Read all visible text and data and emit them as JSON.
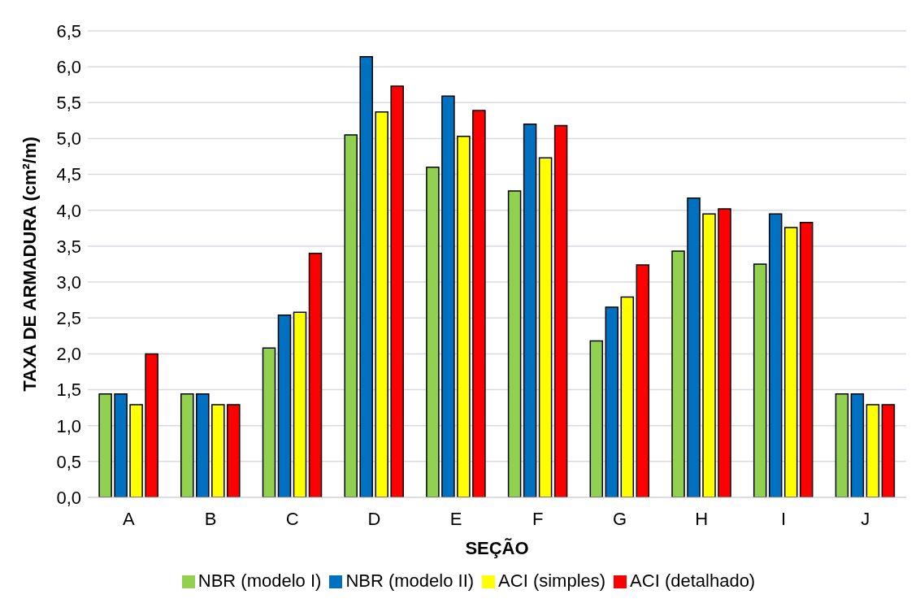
{
  "chart_data": {
    "type": "bar",
    "xlabel": "SEÇÃO",
    "ylabel": "TAXA DE ARMADURA (cm²/m)",
    "categories": [
      "A",
      "B",
      "C",
      "D",
      "E",
      "F",
      "G",
      "H",
      "I",
      "J"
    ],
    "series": [
      {
        "name": "NBR (modelo I)",
        "color": "#92d050",
        "values": [
          1.44,
          1.44,
          2.08,
          5.05,
          4.6,
          4.27,
          2.18,
          3.43,
          3.25,
          1.44
        ]
      },
      {
        "name": "NBR (modelo II)",
        "color": "#0070c0",
        "values": [
          1.44,
          1.44,
          2.54,
          6.14,
          5.59,
          5.2,
          2.65,
          4.17,
          3.95,
          1.44
        ]
      },
      {
        "name": "ACI (simples)",
        "color": "#ffff00",
        "values": [
          1.29,
          1.29,
          2.58,
          5.37,
          5.03,
          4.73,
          2.79,
          3.95,
          3.76,
          1.29
        ]
      },
      {
        "name": "ACI (detalhado)",
        "color": "#ff0000",
        "values": [
          2.0,
          1.29,
          3.4,
          5.73,
          5.39,
          5.18,
          3.24,
          4.02,
          3.83,
          1.29
        ]
      }
    ],
    "ylim": [
      0,
      6.5
    ],
    "yticks": [
      {
        "value": 0,
        "label": "0,0"
      },
      {
        "value": 0.5,
        "label": "0,5"
      },
      {
        "value": 1,
        "label": "1,0"
      },
      {
        "value": 1.5,
        "label": "1,5"
      },
      {
        "value": 2,
        "label": "2,0"
      },
      {
        "value": 2.5,
        "label": "2,5"
      },
      {
        "value": 3,
        "label": "3,0"
      },
      {
        "value": 3.5,
        "label": "3,5"
      },
      {
        "value": 4,
        "label": "4,0"
      },
      {
        "value": 4.5,
        "label": "4,5"
      },
      {
        "value": 5,
        "label": "5,0"
      },
      {
        "value": 5.5,
        "label": "5,5"
      },
      {
        "value": 6,
        "label": "6,0"
      },
      {
        "value": 6.5,
        "label": "6,5"
      }
    ],
    "grid": "y",
    "legend": "bottom"
  }
}
